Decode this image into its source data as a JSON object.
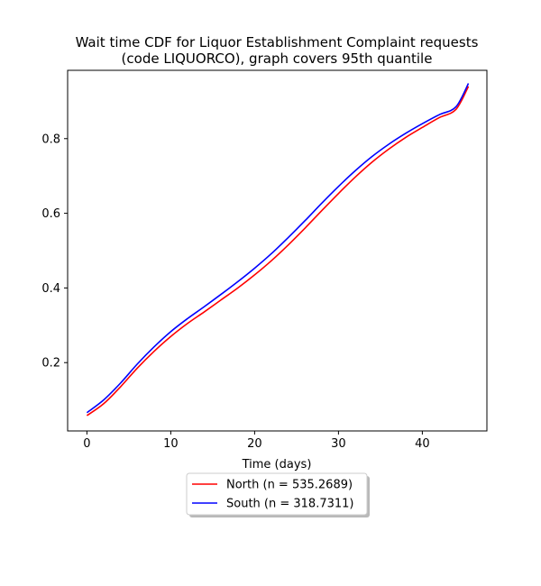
{
  "chart_data": {
    "type": "line",
    "title_line1": "Wait time CDF for Liquor Establishment Complaint  requests",
    "title_line2": "(code LIQUORCO), graph covers 95th quantile",
    "xlabel": "Time (days)",
    "ylabel": "",
    "xlim": [
      -2.3,
      47.7
    ],
    "ylim": [
      0.017,
      0.983
    ],
    "xticks": [
      0,
      10,
      20,
      30,
      40
    ],
    "yticks": [
      0.2,
      0.4,
      0.6,
      0.8
    ],
    "grid": false,
    "legend_position": "below-center",
    "series": [
      {
        "name": "North (n = 535.2689)",
        "color": "#ff0000",
        "x": [
          0,
          2,
          4,
          6,
          8,
          10,
          12,
          14,
          16,
          18,
          20,
          22,
          24,
          26,
          28,
          30,
          32,
          34,
          36,
          38,
          40,
          42,
          44,
          45.5
        ],
        "y": [
          0.058,
          0.09,
          0.135,
          0.185,
          0.23,
          0.27,
          0.305,
          0.336,
          0.368,
          0.4,
          0.435,
          0.473,
          0.515,
          0.56,
          0.607,
          0.653,
          0.697,
          0.737,
          0.772,
          0.803,
          0.83,
          0.856,
          0.878,
          0.94
        ]
      },
      {
        "name": "South (n = 318.7311)",
        "color": "#0000ff",
        "x": [
          0,
          2,
          4,
          6,
          8,
          10,
          12,
          14,
          16,
          18,
          20,
          22,
          24,
          26,
          28,
          30,
          32,
          34,
          36,
          38,
          40,
          42,
          44,
          45.5
        ],
        "y": [
          0.066,
          0.1,
          0.145,
          0.196,
          0.242,
          0.283,
          0.318,
          0.35,
          0.383,
          0.417,
          0.453,
          0.492,
          0.535,
          0.58,
          0.627,
          0.672,
          0.714,
          0.752,
          0.785,
          0.814,
          0.84,
          0.864,
          0.885,
          0.948
        ]
      }
    ]
  }
}
